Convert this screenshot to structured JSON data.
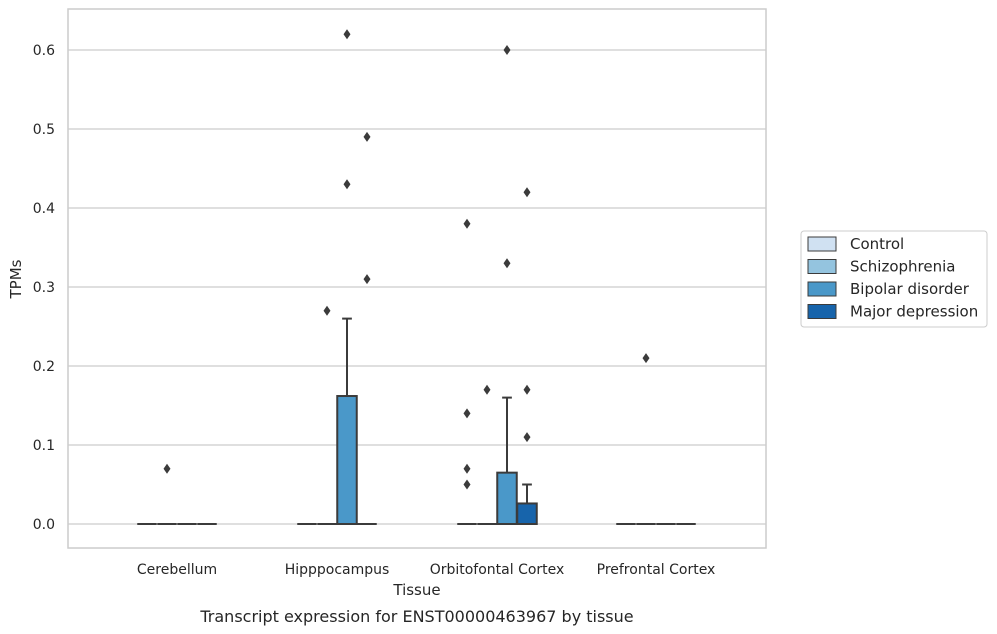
{
  "chart_data": {
    "type": "box",
    "caption": "Transcript expression for ENST00000463967 by tissue",
    "xlabel": "Tissue",
    "ylabel": "TPMs",
    "ylim": [
      -0.03,
      0.653
    ],
    "yticks": [
      0.0,
      0.1,
      0.2,
      0.3,
      0.4,
      0.5,
      0.6
    ],
    "ytick_labels": [
      "0.0",
      "0.1",
      "0.2",
      "0.3",
      "0.4",
      "0.5",
      "0.6"
    ],
    "grid": "horizontal",
    "legend_position": "right",
    "categories": [
      "Cerebellum",
      "Hipppocampus",
      "Orbitofontal Cortex",
      "Prefrontal Cortex"
    ],
    "series": [
      {
        "name": "Control",
        "color": "#d0e1f2",
        "boxes": [
          {
            "min": 0,
            "q1": 0,
            "median": 0,
            "q3": 0,
            "max": 0,
            "outliers": []
          },
          {
            "min": 0,
            "q1": 0,
            "median": 0,
            "q3": 0,
            "max": 0,
            "outliers": []
          },
          {
            "min": 0,
            "q1": 0,
            "median": 0,
            "q3": 0,
            "max": 0,
            "outliers": [
              0.38,
              0.14,
              0.07,
              0.05
            ]
          },
          {
            "min": 0,
            "q1": 0,
            "median": 0,
            "q3": 0,
            "max": 0,
            "outliers": []
          }
        ]
      },
      {
        "name": "Schizophrenia",
        "color": "#94c4df",
        "boxes": [
          {
            "min": 0,
            "q1": 0,
            "median": 0,
            "q3": 0,
            "max": 0,
            "outliers": [
              0.07
            ]
          },
          {
            "min": 0,
            "q1": 0,
            "median": 0,
            "q3": 0,
            "max": 0,
            "outliers": [
              0.27
            ]
          },
          {
            "min": 0,
            "q1": 0,
            "median": 0,
            "q3": 0,
            "max": 0,
            "outliers": [
              0.17
            ]
          },
          {
            "min": 0,
            "q1": 0,
            "median": 0,
            "q3": 0,
            "max": 0,
            "outliers": [
              0.21
            ]
          }
        ]
      },
      {
        "name": "Bipolar disorder",
        "color": "#4a98c9",
        "boxes": [
          {
            "min": 0,
            "q1": 0,
            "median": 0,
            "q3": 0,
            "max": 0,
            "outliers": []
          },
          {
            "min": 0,
            "q1": 0,
            "median": 0,
            "q3": 0.162,
            "max": 0.26,
            "outliers": [
              0.62,
              0.43
            ]
          },
          {
            "min": 0,
            "q1": 0,
            "median": 0,
            "q3": 0.065,
            "max": 0.16,
            "outliers": [
              0.6,
              0.33
            ]
          },
          {
            "min": 0,
            "q1": 0,
            "median": 0,
            "q3": 0,
            "max": 0,
            "outliers": []
          }
        ]
      },
      {
        "name": "Major depression",
        "color": "#1764ab",
        "boxes": [
          {
            "min": 0,
            "q1": 0,
            "median": 0,
            "q3": 0,
            "max": 0,
            "outliers": []
          },
          {
            "min": 0,
            "q1": 0,
            "median": 0,
            "q3": 0,
            "max": 0,
            "outliers": [
              0.49,
              0.31
            ]
          },
          {
            "min": 0,
            "q1": 0,
            "median": 0,
            "q3": 0.026,
            "max": 0.05,
            "outliers": [
              0.42,
              0.17,
              0.11
            ]
          },
          {
            "min": 0,
            "q1": 0,
            "median": 0,
            "q3": 0,
            "max": 0,
            "outliers": []
          }
        ]
      }
    ]
  }
}
